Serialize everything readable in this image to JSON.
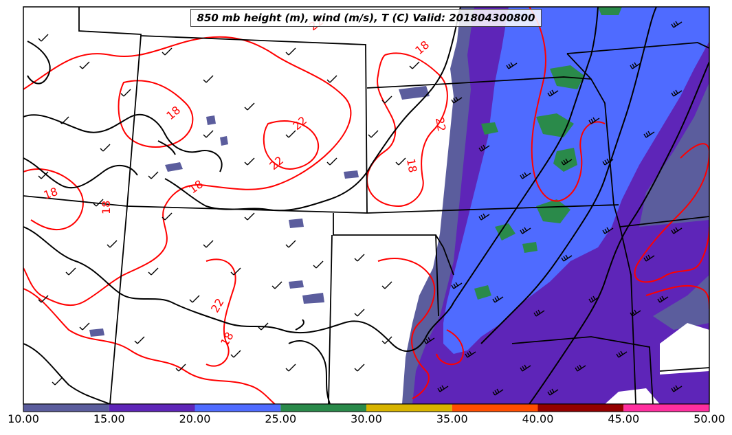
{
  "title": "850 mb height (m), wind (m/s), T (C) Valid: 201804300800",
  "colorbar": {
    "ticks": [
      "10.00",
      "15.00",
      "20.00",
      "25.00",
      "30.00",
      "35.00",
      "40.00",
      "45.00",
      "50.00"
    ],
    "colors": [
      "#5b5d9d",
      "#5e25b8",
      "#4f6bff",
      "#2a8a4a",
      "#d8b400",
      "#ff4d00",
      "#930000",
      "#ff2f9f"
    ]
  },
  "contour_labels": [
    "22",
    "18",
    "18",
    "22",
    "22",
    "18",
    "18",
    "18",
    "18",
    "22",
    "22",
    "18"
  ],
  "legend_colors": {
    "temperature_contour": "#ff0000",
    "height_contour": "#000000",
    "state_border": "#000000"
  }
}
